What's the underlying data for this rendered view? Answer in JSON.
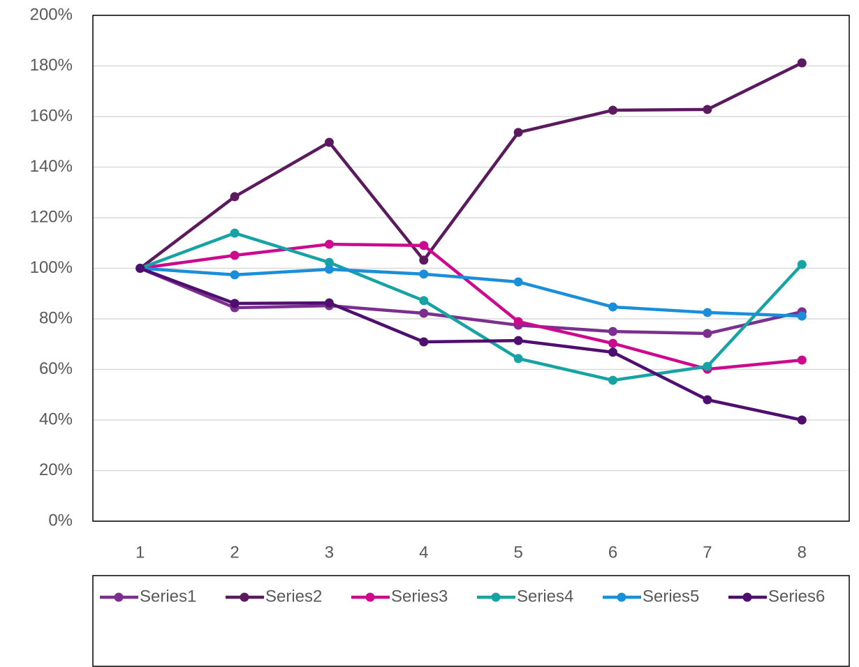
{
  "chart_data": {
    "type": "line",
    "categories": [
      "1",
      "2",
      "3",
      "4",
      "5",
      "6",
      "7",
      "8"
    ],
    "series": [
      {
        "name": "Series1",
        "color": "#7b2f8e",
        "values": [
          100,
          84.4,
          85.2,
          82.2,
          77.5,
          75,
          74.2,
          82.8
        ]
      },
      {
        "name": "Series2",
        "color": "#5c1a5e",
        "values": [
          100,
          128.3,
          149.8,
          103.2,
          153.7,
          162.5,
          162.8,
          181.2
        ]
      },
      {
        "name": "Series3",
        "color": "#cc0a8d",
        "values": [
          100,
          105.1,
          109.5,
          109,
          78.9,
          70.3,
          60.1,
          63.7
        ]
      },
      {
        "name": "Series4",
        "color": "#17a3a3",
        "values": [
          100,
          113.9,
          102.3,
          87.2,
          64.3,
          55.7,
          61.2,
          101.5
        ]
      },
      {
        "name": "Series5",
        "color": "#1b8ed9",
        "values": [
          100,
          97.4,
          99.6,
          97.7,
          94.6,
          84.7,
          82.5,
          81.1
        ]
      },
      {
        "name": "Series6",
        "color": "#4f0f6e",
        "values": [
          100,
          86.1,
          86.3,
          70.9,
          71.4,
          66.8,
          48,
          40
        ]
      }
    ],
    "ylim": [
      0,
      200
    ],
    "yticks": [
      {
        "value": 0,
        "label": "0%"
      },
      {
        "value": 20,
        "label": "20%"
      },
      {
        "value": 40,
        "label": "40%"
      },
      {
        "value": 60,
        "label": "60%"
      },
      {
        "value": 80,
        "label": "80%"
      },
      {
        "value": 100,
        "label": "100%"
      },
      {
        "value": 120,
        "label": "120%"
      },
      {
        "value": 140,
        "label": "140%"
      },
      {
        "value": 160,
        "label": "160%"
      },
      {
        "value": 180,
        "label": "180%"
      },
      {
        "value": 200,
        "label": "200%"
      }
    ],
    "grid": true,
    "legend": "bottom"
  }
}
